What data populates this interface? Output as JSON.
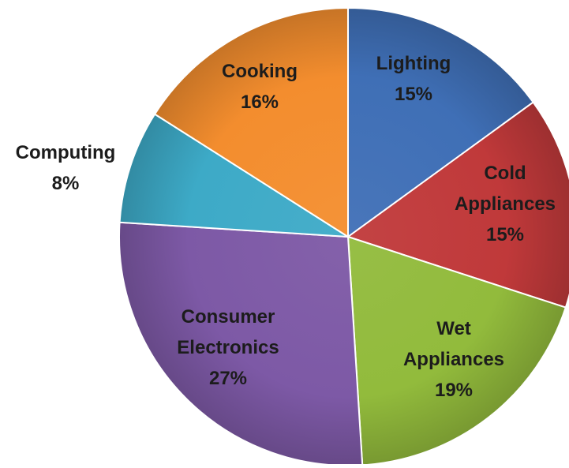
{
  "chart_data": {
    "type": "pie",
    "title": "",
    "slices": [
      {
        "label": "Lighting",
        "value": 15,
        "display": "15%",
        "color": "#3F6FB6"
      },
      {
        "label": "Cold Appliances",
        "value": 15,
        "display": "15%",
        "color": "#C0393A"
      },
      {
        "label": "Wet Appliances",
        "value": 19,
        "display": "19%",
        "color": "#92BB3C"
      },
      {
        "label": "Consumer Electronics",
        "value": 27,
        "display": "27%",
        "color": "#7D59A6"
      },
      {
        "label": "Computing",
        "value": 8,
        "display": "8%",
        "color": "#3DAAC7"
      },
      {
        "label": "Cooking",
        "value": 16,
        "display": "16%",
        "color": "#F38D2E"
      }
    ],
    "label_lines": [
      [
        "Lighting",
        "15%"
      ],
      [
        "Cold",
        "Appliances",
        "15%"
      ],
      [
        "Wet",
        "Appliances",
        "19%"
      ],
      [
        "Consumer",
        "Electronics",
        "27%"
      ],
      [
        "Computing",
        "8%"
      ],
      [
        "Cooking",
        "16%"
      ]
    ],
    "legend": "none",
    "start_direction": "top, clockwise"
  }
}
